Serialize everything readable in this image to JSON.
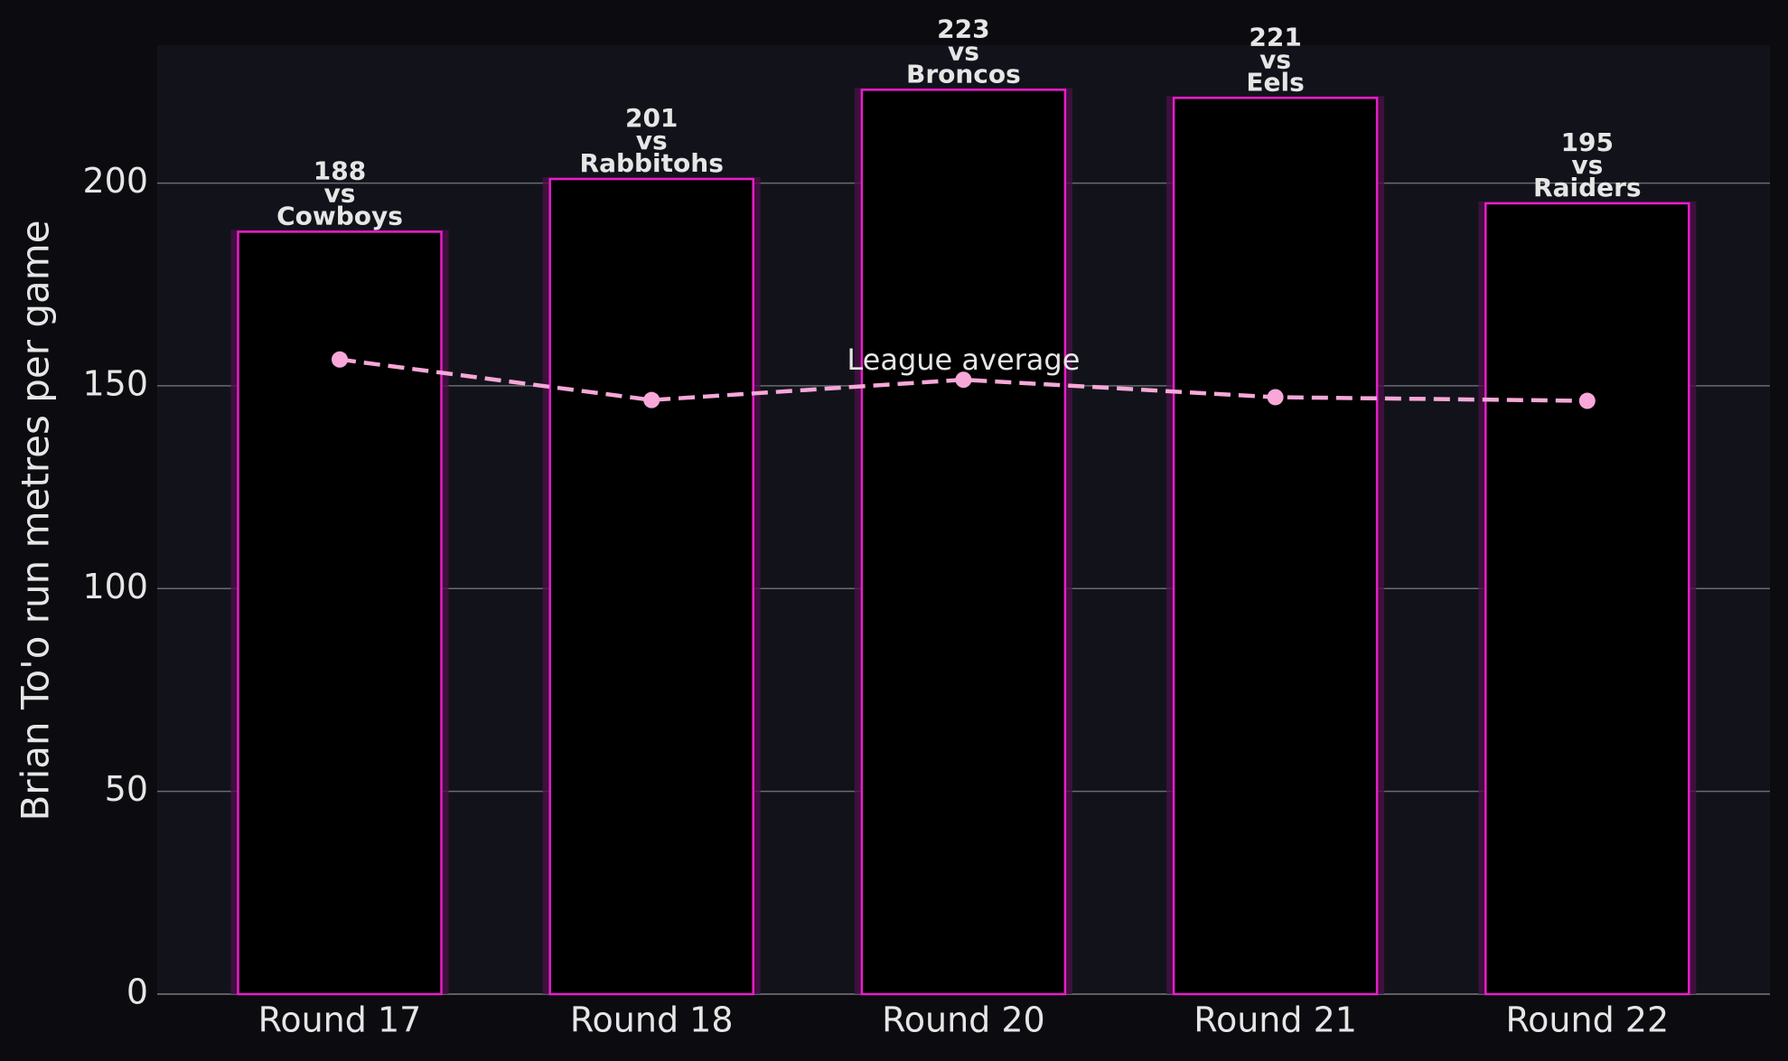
{
  "chart_data": {
    "type": "bar",
    "y_label": "Brian To'o run metres per game",
    "categories": [
      "Round 17",
      "Round 18",
      "Round 20",
      "Round 21",
      "Round 22"
    ],
    "values": [
      188,
      201,
      223,
      221,
      195
    ],
    "opponents": [
      "Cowboys",
      "Rabbitohs",
      "Broncos",
      "Eels",
      "Raiders"
    ],
    "label_joiner": "vs",
    "color": "#e81ec8",
    "league_average": {
      "label": "League average",
      "color": "#f7a8d8",
      "values": [
        156.5,
        146.5,
        151.5,
        147.2,
        146.3
      ]
    },
    "ylim": [
      0,
      234
    ],
    "yticks": [
      0,
      50,
      100,
      150,
      200
    ],
    "grid": true
  }
}
